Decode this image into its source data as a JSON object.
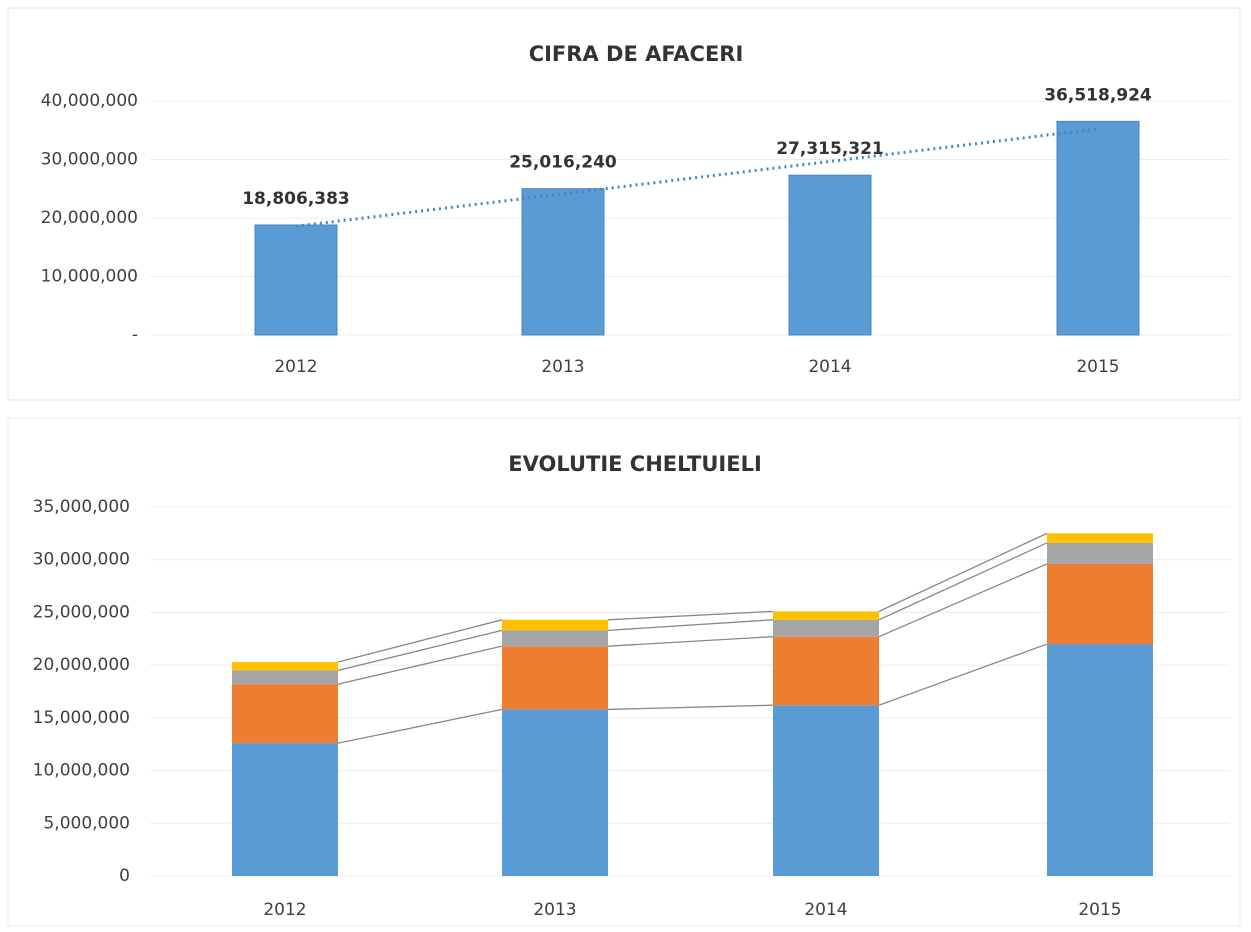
{
  "chart_data": [
    {
      "type": "bar",
      "title": "CIFRA DE AFACERI",
      "categories": [
        "2012",
        "2013",
        "2014",
        "2015"
      ],
      "values": [
        18806383,
        25016240,
        27315321,
        36518924
      ],
      "value_labels": [
        "18,806,383",
        "25,016,240",
        "27,315,321",
        "36,518,924"
      ],
      "color": "#5b9bd5",
      "ylim": [
        0,
        40000000
      ],
      "yticks": [
        {
          "value": 0,
          "label": "-"
        },
        {
          "value": 10000000,
          "label": "10,000,000"
        },
        {
          "value": 20000000,
          "label": "20,000,000"
        },
        {
          "value": 30000000,
          "label": "30,000,000"
        },
        {
          "value": 40000000,
          "label": "40,000,000"
        }
      ],
      "grid": true,
      "trendline": true
    },
    {
      "type": "stacked_bar",
      "title": "EVOLUTIE CHELTUIELI",
      "categories": [
        "2012",
        "2013",
        "2014",
        "2015"
      ],
      "series": [
        {
          "color": "#5b9bd5",
          "values": [
            12600000,
            15800000,
            16200000,
            22000000
          ]
        },
        {
          "color": "#ed7d31",
          "values": [
            5600000,
            6000000,
            6500000,
            7600000
          ]
        },
        {
          "color": "#a5a5a5",
          "values": [
            1300000,
            1500000,
            1600000,
            2000000
          ]
        },
        {
          "color": "#ffc000",
          "values": [
            800000,
            1000000,
            800000,
            900000
          ]
        }
      ],
      "ylim": [
        0,
        35000000
      ],
      "yticks": [
        0,
        {
          "value": 5000000,
          "label": "5,000,000"
        },
        {
          "value": 10000000,
          "label": "10,000,000"
        },
        {
          "value": 15000000,
          "label": "15,000,000"
        },
        {
          "value": 20000000,
          "label": "20,000,000"
        },
        {
          "value": 25000000,
          "label": "25,000,000"
        },
        {
          "value": 30000000,
          "label": "30,000,000"
        },
        {
          "value": 35000000,
          "label": "35,000,000"
        }
      ],
      "grid": true,
      "series_lines": true
    }
  ]
}
